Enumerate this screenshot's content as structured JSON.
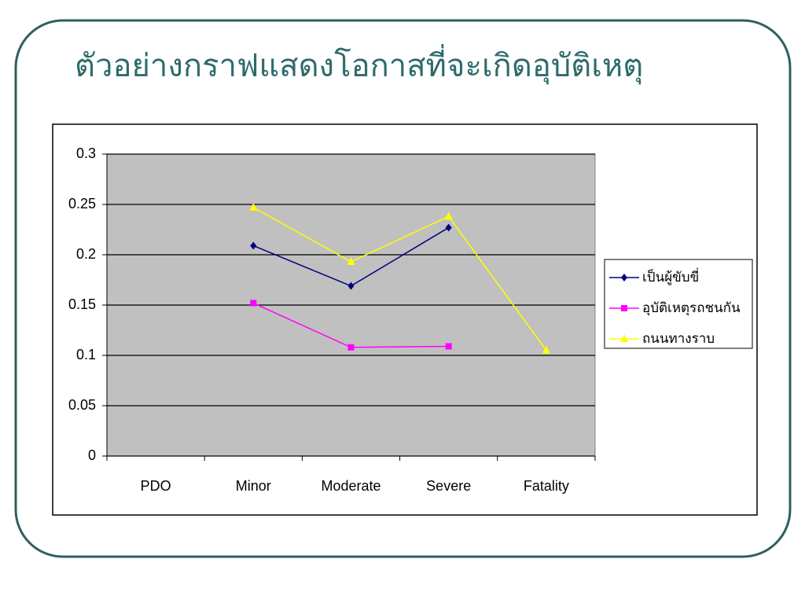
{
  "chart_data": {
    "type": "line",
    "title": "ตัวอย่างกราฟแสดงโอกาสที่จะเกิดอุบัติเหตุ",
    "categories": [
      "PDO",
      "Minor",
      "Moderate",
      "Severe",
      "Fatality"
    ],
    "series": [
      {
        "name": "เป็นผู้ขับขี่",
        "color": "#000080",
        "marker": "diamond",
        "values": [
          null,
          0.209,
          0.169,
          0.227,
          null
        ]
      },
      {
        "name": "อุบัติเหตุรถชนกัน",
        "color": "#ff00ff",
        "marker": "square",
        "values": [
          null,
          0.152,
          0.108,
          0.109,
          null
        ]
      },
      {
        "name": "ถนนทางราบ",
        "color": "#ffff00",
        "marker": "triangle",
        "values": [
          null,
          0.247,
          0.193,
          0.238,
          0.105
        ]
      }
    ],
    "ylim": [
      0,
      0.3
    ],
    "yticks": [
      0,
      0.05,
      0.1,
      0.15,
      0.2,
      0.25,
      0.3
    ],
    "grid": true,
    "legend": "right"
  }
}
